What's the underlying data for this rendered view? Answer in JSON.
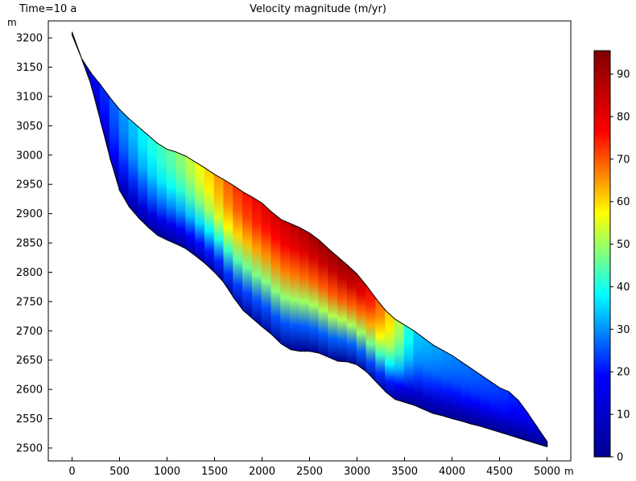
{
  "header": {
    "time_label": "Time=10 a",
    "title": "Velocity magnitude (m/yr)"
  },
  "chart_data": {
    "type": "heatmap",
    "title": "Velocity magnitude (m/yr)",
    "time": "Time=10 a",
    "x_unit": "m",
    "y_unit": "m",
    "xlim": [
      -250,
      5250
    ],
    "ylim": [
      2478,
      3229
    ],
    "x_ticks": [
      0,
      500,
      1000,
      1500,
      2000,
      2500,
      3000,
      3500,
      4000,
      4500,
      5000
    ],
    "y_ticks": [
      2500,
      2550,
      2600,
      2650,
      2700,
      2750,
      2800,
      2850,
      2900,
      2950,
      3000,
      3050,
      3100,
      3150,
      3200
    ],
    "grid": false,
    "surface": [
      [
        0,
        3210
      ],
      [
        100,
        3165
      ],
      [
        200,
        3140
      ],
      [
        300,
        3120
      ],
      [
        400,
        3098
      ],
      [
        500,
        3078
      ],
      [
        600,
        3062
      ],
      [
        700,
        3048
      ],
      [
        800,
        3034
      ],
      [
        900,
        3020
      ],
      [
        1000,
        3010
      ],
      [
        1100,
        3005
      ],
      [
        1200,
        2998
      ],
      [
        1300,
        2988
      ],
      [
        1400,
        2978
      ],
      [
        1500,
        2967
      ],
      [
        1600,
        2958
      ],
      [
        1700,
        2948
      ],
      [
        1800,
        2937
      ],
      [
        1900,
        2928
      ],
      [
        2000,
        2918
      ],
      [
        2100,
        2903
      ],
      [
        2200,
        2890
      ],
      [
        2300,
        2883
      ],
      [
        2400,
        2876
      ],
      [
        2500,
        2867
      ],
      [
        2600,
        2855
      ],
      [
        2700,
        2840
      ],
      [
        2800,
        2826
      ],
      [
        2900,
        2812
      ],
      [
        3000,
        2797
      ],
      [
        3100,
        2777
      ],
      [
        3200,
        2755
      ],
      [
        3300,
        2735
      ],
      [
        3400,
        2720
      ],
      [
        3500,
        2710
      ],
      [
        3600,
        2700
      ],
      [
        3700,
        2688
      ],
      [
        3800,
        2676
      ],
      [
        3900,
        2667
      ],
      [
        4000,
        2658
      ],
      [
        4100,
        2647
      ],
      [
        4200,
        2636
      ],
      [
        4300,
        2625
      ],
      [
        4400,
        2614
      ],
      [
        4500,
        2603
      ],
      [
        4600,
        2596
      ],
      [
        4700,
        2581
      ],
      [
        4800,
        2559
      ],
      [
        4900,
        2535
      ],
      [
        5000,
        2511
      ]
    ],
    "bed": [
      [
        0,
        3205
      ],
      [
        100,
        3165
      ],
      [
        200,
        3120
      ],
      [
        300,
        3058
      ],
      [
        400,
        2995
      ],
      [
        500,
        2940
      ],
      [
        600,
        2912
      ],
      [
        700,
        2893
      ],
      [
        800,
        2877
      ],
      [
        900,
        2863
      ],
      [
        1000,
        2855
      ],
      [
        1100,
        2848
      ],
      [
        1200,
        2840
      ],
      [
        1300,
        2828
      ],
      [
        1400,
        2815
      ],
      [
        1500,
        2800
      ],
      [
        1600,
        2782
      ],
      [
        1700,
        2757
      ],
      [
        1800,
        2735
      ],
      [
        1900,
        2721
      ],
      [
        2000,
        2707
      ],
      [
        2100,
        2694
      ],
      [
        2200,
        2678
      ],
      [
        2300,
        2668
      ],
      [
        2400,
        2665
      ],
      [
        2500,
        2665
      ],
      [
        2600,
        2662
      ],
      [
        2700,
        2655
      ],
      [
        2800,
        2648
      ],
      [
        2900,
        2647
      ],
      [
        3000,
        2642
      ],
      [
        3100,
        2630
      ],
      [
        3200,
        2613
      ],
      [
        3300,
        2596
      ],
      [
        3400,
        2583
      ],
      [
        3500,
        2578
      ],
      [
        3600,
        2573
      ],
      [
        3700,
        2566
      ],
      [
        3800,
        2559
      ],
      [
        3900,
        2555
      ],
      [
        4000,
        2550
      ],
      [
        4100,
        2546
      ],
      [
        4200,
        2541
      ],
      [
        4300,
        2537
      ],
      [
        4400,
        2532
      ],
      [
        4500,
        2527
      ],
      [
        4600,
        2522
      ],
      [
        4700,
        2517
      ],
      [
        4800,
        2512
      ],
      [
        4900,
        2507
      ],
      [
        5000,
        2502
      ]
    ],
    "velocity_profile": {
      "x": [
        0,
        200,
        500,
        800,
        1100,
        1400,
        1700,
        2000,
        2300,
        2600,
        2900,
        3100,
        3400,
        3600,
        3900,
        4200,
        4500,
        4800,
        5000
      ],
      "surface_value": [
        2,
        8,
        24,
        38,
        47,
        62,
        78,
        87,
        90,
        94,
        95,
        90,
        60,
        32,
        26,
        22,
        18,
        12,
        4
      ]
    },
    "colorbar": {
      "min": 0,
      "max": 95.5,
      "ticks": [
        0,
        10,
        20,
        30,
        40,
        50,
        60,
        70,
        80,
        90
      ],
      "colors": [
        "#00008f",
        "#0000ff",
        "#00ffff",
        "#ffff00",
        "#ff0000",
        "#800000"
      ]
    }
  }
}
